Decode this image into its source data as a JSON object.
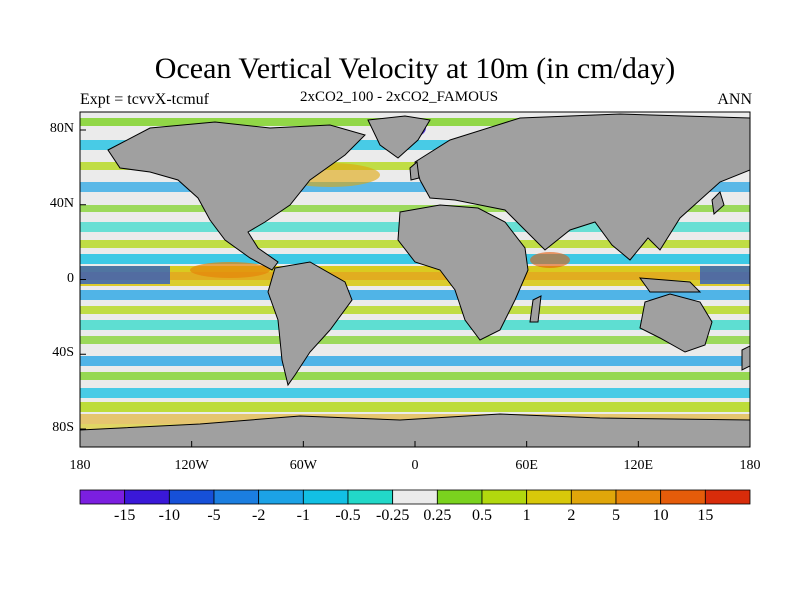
{
  "title": "Ocean Vertical Velocity at 10m (in cm/day)",
  "subtitle_left": "Expt = tcvvX-tcmuf",
  "subtitle_center": "2xCO2_100 - 2xCO2_FAMOUS",
  "subtitle_right": "ANN",
  "lat_ticks": [
    "80N",
    "40N",
    "0",
    "40S",
    "80S"
  ],
  "lon_ticks": [
    "180",
    "120W",
    "60W",
    "0",
    "60E",
    "120E",
    "180"
  ],
  "colorbar": {
    "labels": [
      "-15",
      "-10",
      "-5",
      "-2",
      "-1",
      "-0.5",
      "-0.25",
      "0.25",
      "0.5",
      "1",
      "2",
      "5",
      "10",
      "15"
    ],
    "colors": [
      "#7b1fe0",
      "#3a18d8",
      "#1650d8",
      "#1b7ee0",
      "#1ca2e6",
      "#12c0e4",
      "#22d8c8",
      "#ebebeb",
      "#7ad21e",
      "#b2d80e",
      "#d8c80a",
      "#e0a60a",
      "#e6850a",
      "#e55c0a",
      "#d82c0a"
    ]
  },
  "colors": {
    "land": "#a0a0a0",
    "coast": "#000000"
  }
}
